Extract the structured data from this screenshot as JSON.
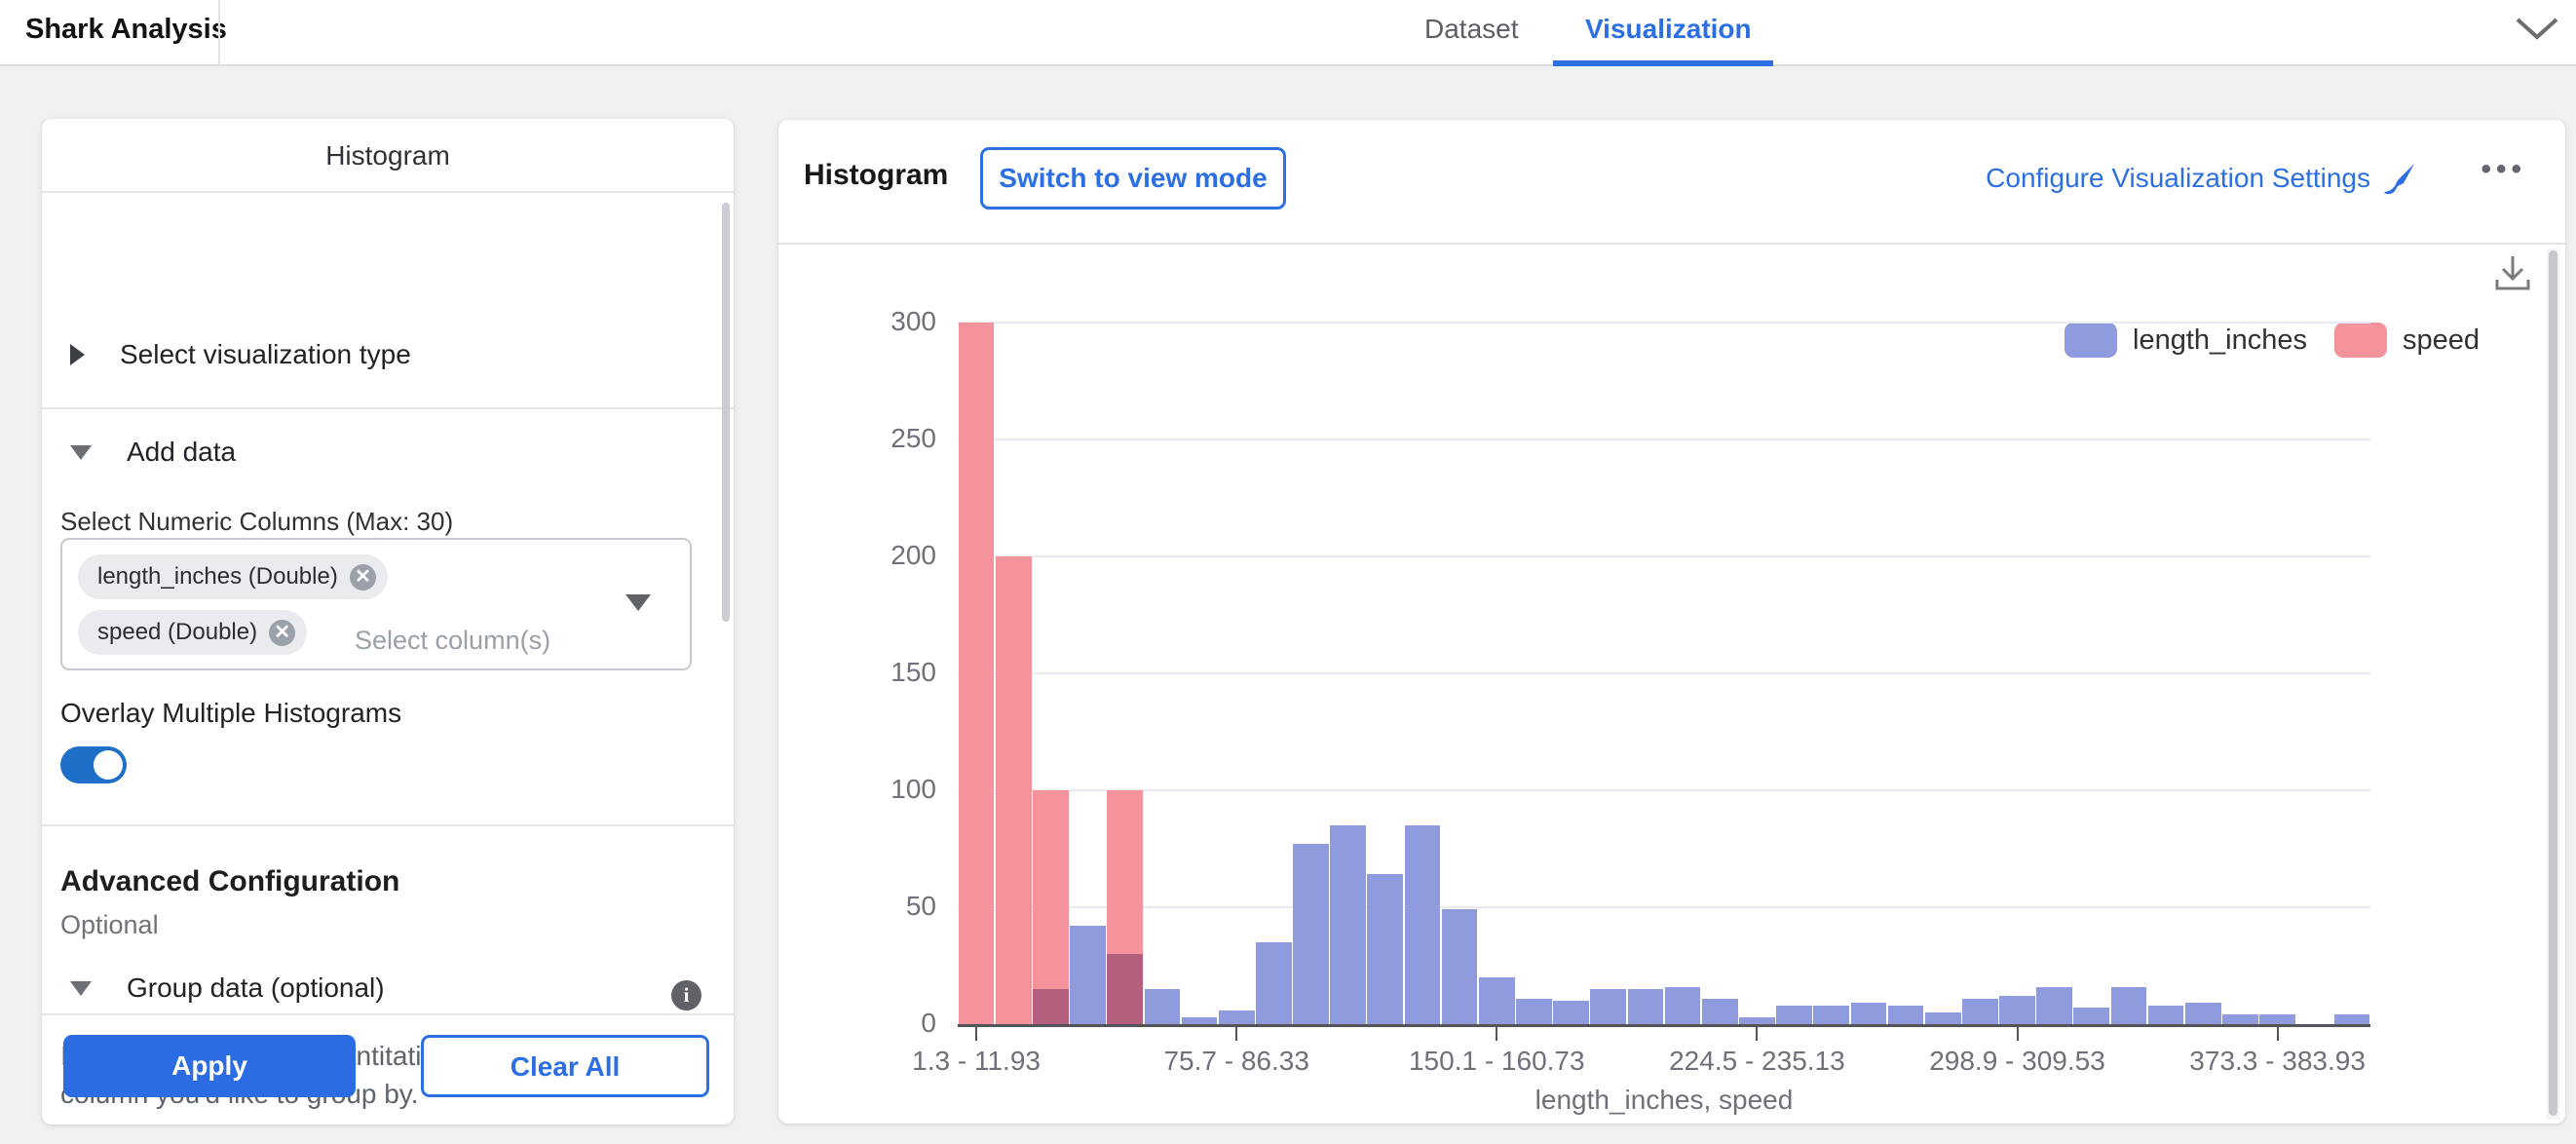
{
  "topbar": {
    "title": "Shark Analysis",
    "tabs": [
      {
        "label": "Dataset",
        "active": false
      },
      {
        "label": "Visualization",
        "active": true
      }
    ]
  },
  "panel": {
    "title": "Histogram",
    "select_viz_type_label": "Select visualization type",
    "add_data_label": "Add data",
    "numeric_columns_label": "Select Numeric Columns (Max: 30)",
    "chips": [
      {
        "label": "length_inches (Double)"
      },
      {
        "label": "speed (Double)"
      }
    ],
    "select_placeholder": "Select column(s)",
    "overlay_label": "Overlay Multiple Histograms",
    "overlay_on": true,
    "advanced_title": "Advanced Configuration",
    "advanced_subtitle": "Optional",
    "group_data_label": "Group data (optional)",
    "group_help": "If you are displaying quantitative data, specify the column you'd like to group by.",
    "apply_label": "Apply",
    "clear_label": "Clear All"
  },
  "chart_header": {
    "title": "Histogram",
    "switch_button": "Switch to view mode",
    "configure_link": "Configure Visualization Settings",
    "more_dots": "•••"
  },
  "chart_data": {
    "type": "bar",
    "subtype": "overlaid-histogram",
    "title": "",
    "xlabel": "length_inches, speed",
    "ylabel": "",
    "ylim": [
      0,
      300
    ],
    "y_ticks": [
      0,
      50,
      100,
      150,
      200,
      250,
      300
    ],
    "grid": true,
    "legend_position": "top-right",
    "bins": 38,
    "x_tick_indices": [
      0,
      7,
      14,
      21,
      28,
      35
    ],
    "x_tick_labels": [
      "1.3 - 11.93",
      "75.7 - 86.33",
      "150.1 - 160.73",
      "224.5 - 235.13",
      "298.9 - 309.53",
      "373.3 - 383.93"
    ],
    "series": [
      {
        "name": "length_inches",
        "color": "#8F9BDC",
        "values": [
          0,
          0,
          15,
          42,
          30,
          15,
          3,
          6,
          35,
          77,
          85,
          64,
          85,
          49,
          20,
          11,
          10,
          15,
          15,
          16,
          11,
          3,
          8,
          8,
          9,
          8,
          5,
          11,
          12,
          16,
          7,
          16,
          8,
          9,
          4,
          4,
          0,
          4
        ]
      },
      {
        "name": "speed",
        "color": "#F4939B",
        "values": [
          300,
          200,
          100,
          0,
          100,
          0,
          0,
          0,
          0,
          0,
          0,
          0,
          0,
          0,
          0,
          0,
          0,
          0,
          0,
          0,
          0,
          0,
          0,
          0,
          0,
          0,
          0,
          0,
          0,
          0,
          0,
          0,
          0,
          0,
          0,
          0,
          0,
          0
        ]
      }
    ],
    "overlap_color": "#B55F7E"
  }
}
